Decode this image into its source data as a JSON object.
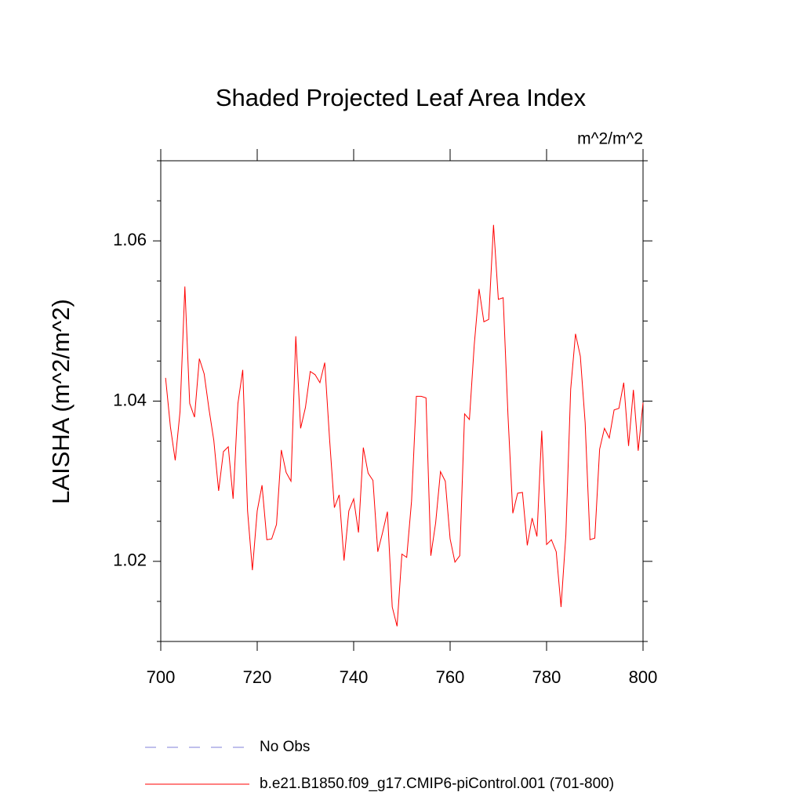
{
  "chart_data": {
    "type": "line",
    "title": "Shaded Projected Leaf Area Index",
    "units_label": "m^2/m^2",
    "y_label": "LAISHA  (m^2/m^2)",
    "x": [
      701,
      702,
      703,
      704,
      705,
      706,
      707,
      708,
      709,
      710,
      711,
      712,
      713,
      714,
      715,
      716,
      717,
      718,
      719,
      720,
      721,
      722,
      723,
      724,
      725,
      726,
      727,
      728,
      729,
      730,
      731,
      732,
      733,
      734,
      735,
      736,
      737,
      738,
      739,
      740,
      741,
      742,
      743,
      744,
      745,
      746,
      747,
      748,
      749,
      750,
      751,
      752,
      753,
      754,
      755,
      756,
      757,
      758,
      759,
      760,
      761,
      762,
      763,
      764,
      765,
      766,
      767,
      768,
      769,
      770,
      771,
      772,
      773,
      774,
      775,
      776,
      777,
      778,
      779,
      780,
      781,
      782,
      783,
      784,
      785,
      786,
      787,
      788,
      789,
      790,
      791,
      792,
      793,
      794,
      795,
      796,
      797,
      798,
      799,
      800
    ],
    "series": [
      {
        "name": "No Obs",
        "color": "#8080d8",
        "dashed": true,
        "values": [
          null,
          null,
          null,
          null,
          null,
          null,
          null,
          null,
          null,
          null,
          null,
          null,
          null,
          null,
          null,
          null,
          null,
          null,
          null,
          null,
          null,
          null,
          null,
          null,
          null,
          null,
          null,
          null,
          null,
          null,
          null,
          null,
          null,
          null,
          null,
          null,
          null,
          null,
          null,
          null,
          null,
          null,
          null,
          null,
          null,
          null,
          null,
          null,
          null,
          null,
          null,
          null,
          null,
          null,
          null,
          null,
          null,
          null,
          null,
          null,
          null,
          null,
          null,
          null,
          null,
          null,
          null,
          null,
          null,
          null,
          null,
          null,
          null,
          null,
          null,
          null,
          null,
          null,
          null,
          null,
          null,
          null,
          null,
          null,
          null,
          null,
          null,
          null,
          null,
          null,
          null,
          null,
          null,
          null,
          null,
          null,
          null,
          null,
          null,
          null
        ]
      },
      {
        "name": "b.e21.B1850.f09_g17.CMIP6-piControl.001 (701-800)",
        "color": "#ff0000",
        "dashed": false,
        "values": [
          1.0429,
          1.0368,
          1.0326,
          1.0387,
          1.0543,
          1.0397,
          1.038,
          1.0453,
          1.0434,
          1.039,
          1.0351,
          1.0288,
          1.0337,
          1.0343,
          1.0278,
          1.0397,
          1.0439,
          1.0263,
          1.0189,
          1.0263,
          1.0295,
          1.0227,
          1.0228,
          1.0246,
          1.0339,
          1.0311,
          1.03,
          1.0481,
          1.0366,
          1.0392,
          1.0437,
          1.0433,
          1.0423,
          1.0448,
          1.0353,
          1.0267,
          1.0283,
          1.0201,
          1.0263,
          1.0278,
          1.0236,
          1.0342,
          1.031,
          1.0301,
          1.0212,
          1.0236,
          1.0262,
          1.0143,
          1.0119,
          1.0209,
          1.0205,
          1.0275,
          1.0406,
          1.0406,
          1.0404,
          1.0207,
          1.0248,
          1.0312,
          1.03,
          1.0228,
          1.0199,
          1.0207,
          1.0384,
          1.0377,
          1.047,
          1.054,
          1.0499,
          1.0502,
          1.062,
          1.0527,
          1.0529,
          1.0382,
          1.026,
          1.0285,
          1.0286,
          1.022,
          1.0254,
          1.0231,
          1.0363,
          1.0221,
          1.0227,
          1.0212,
          1.0143,
          1.0233,
          1.0415,
          1.0484,
          1.0456,
          1.0373,
          1.0227,
          1.0229,
          1.034,
          1.0366,
          1.0354,
          1.0389,
          1.0391,
          1.0423,
          1.0344,
          1.0414,
          1.0338,
          1.0398
        ]
      }
    ],
    "xlim": [
      700,
      800
    ],
    "xticks": [
      700,
      720,
      740,
      760,
      780,
      800
    ],
    "ylim": [
      1.01,
      1.07
    ],
    "yticks": [
      1.02,
      1.04,
      1.06
    ],
    "yminorticks": [
      1.01,
      1.015,
      1.025,
      1.03,
      1.035,
      1.045,
      1.05,
      1.055,
      1.065,
      1.07
    ],
    "grid": false
  }
}
